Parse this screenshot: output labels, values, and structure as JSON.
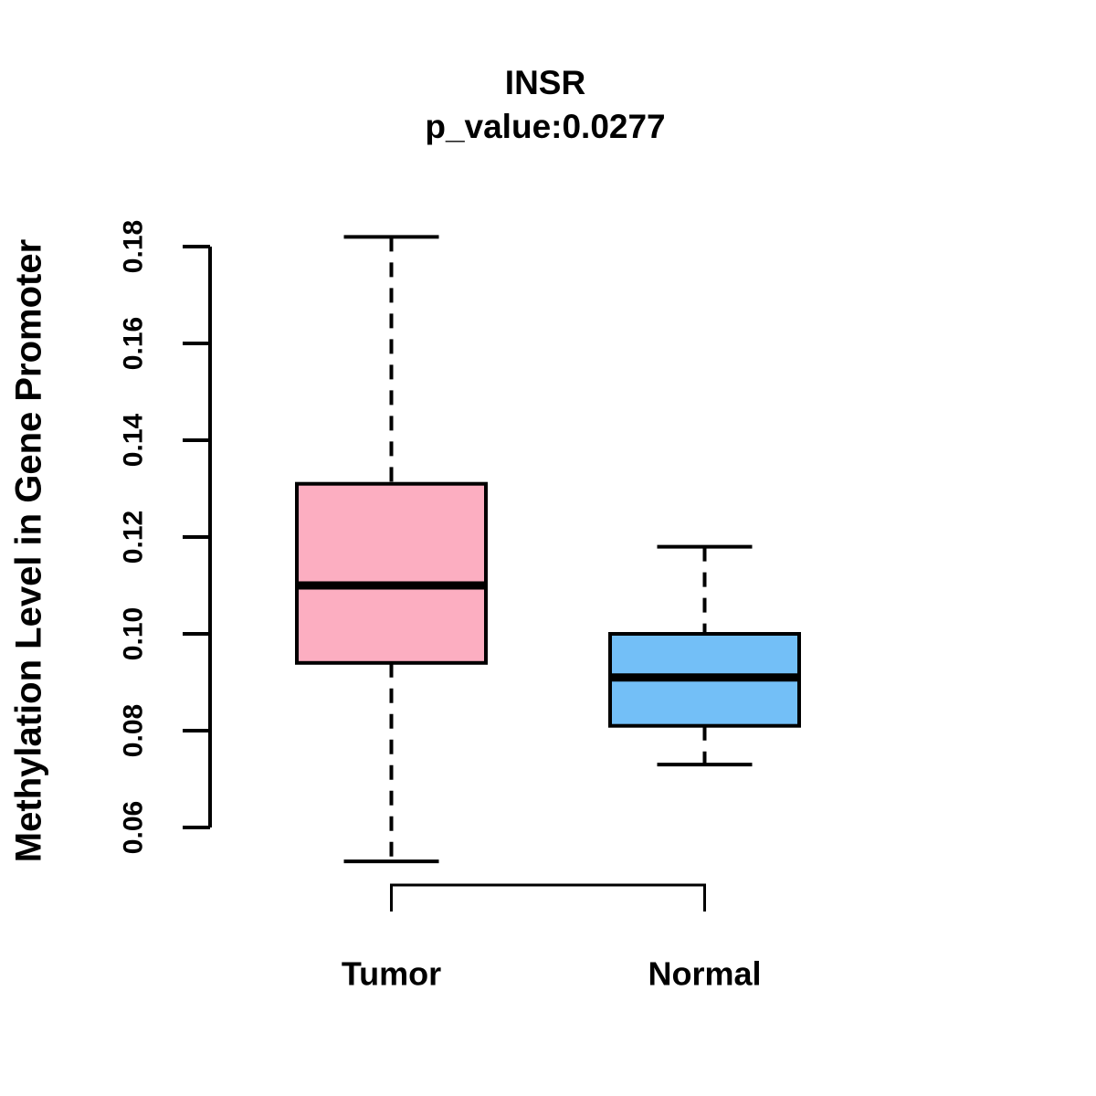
{
  "title": "INSR",
  "subtitle": "p_value:0.0277",
  "ylabel": "Methylation Level in Gene Promoter",
  "chart_data": {
    "type": "boxplot",
    "title": "INSR",
    "subtitle": "p_value:0.0277",
    "p_value": 0.0277,
    "xlabel": "",
    "ylabel": "Methylation Level in Gene Promoter",
    "ylim": [
      0.06,
      0.18
    ],
    "yticks": [
      0.06,
      0.08,
      0.1,
      0.12,
      0.14,
      0.16,
      0.18
    ],
    "ytick_labels": [
      "0.06",
      "0.08",
      "0.10",
      "0.12",
      "0.14",
      "0.16",
      "0.18"
    ],
    "categories": [
      "Tumor",
      "Normal"
    ],
    "grid": false,
    "legend": "none",
    "groups": [
      {
        "label": "Tumor",
        "fill_color": "#FCAEC1",
        "whisker_low": 0.053,
        "q1": 0.094,
        "median": 0.11,
        "q3": 0.131,
        "whisker_high": 0.182
      },
      {
        "label": "Normal",
        "fill_color": "#73BFF7",
        "whisker_low": 0.073,
        "q1": 0.081,
        "median": 0.091,
        "q3": 0.1,
        "whisker_high": 0.118
      }
    ],
    "colors": {
      "stroke": "#000000",
      "text": "#000000",
      "background": "#FFFFFF",
      "tumor_fill": "#FCAEC1",
      "normal_fill": "#73BFF7"
    }
  }
}
